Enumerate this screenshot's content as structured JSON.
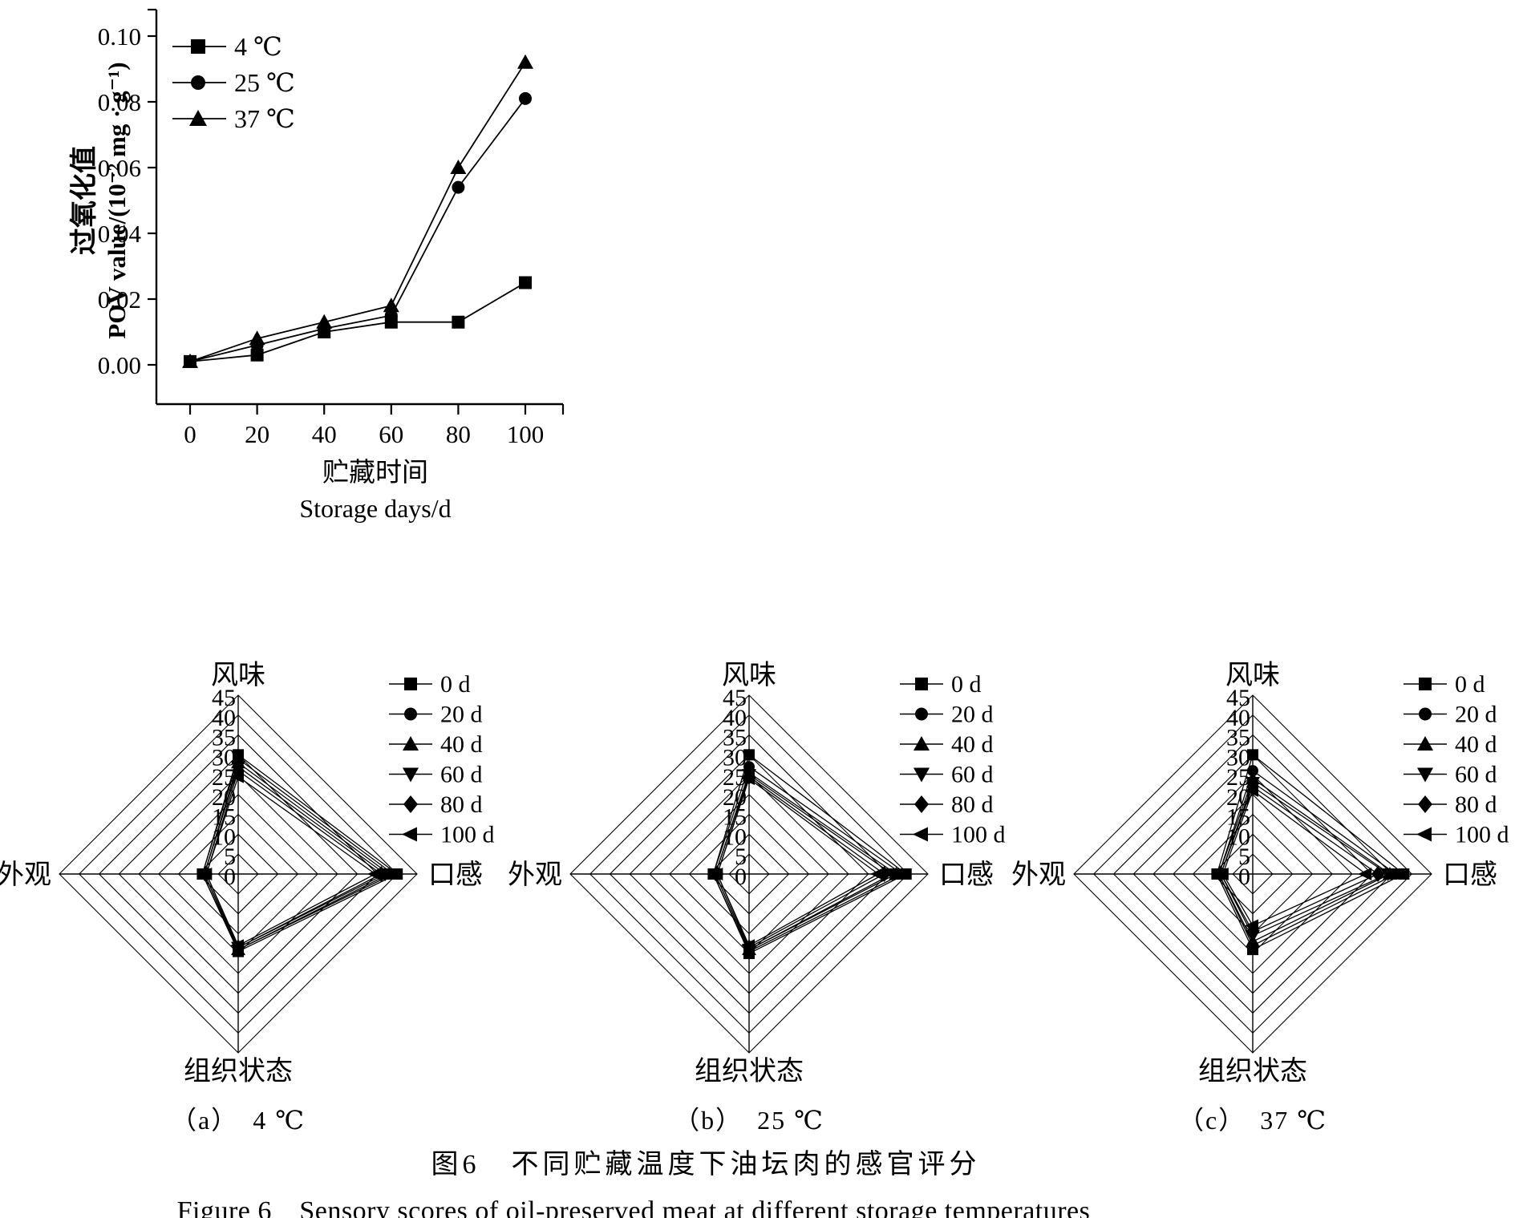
{
  "figure": {
    "caption_cn": "图6　不同贮藏温度下油坛肉的感官评分",
    "caption_en": "Figure 6　Sensory scores of oil-preserved meat at different storage temperatures",
    "ink_color": "#000000",
    "background_color": "#ffffff"
  },
  "chart_data": [
    {
      "id": "pov_line",
      "type": "line",
      "title": "",
      "ylabel_cn": "过氧化值",
      "ylabel_en": "POV value/(10⁻² mg · g⁻¹)",
      "xlabel_cn": "贮藏时间",
      "xlabel_en": "Storage days/d",
      "x": [
        0,
        20,
        40,
        60,
        80,
        100
      ],
      "xticks": [
        0,
        20,
        40,
        60,
        80,
        100
      ],
      "yticks": [
        0.0,
        0.02,
        0.04,
        0.06,
        0.08,
        0.1
      ],
      "xlim": [
        -10,
        112
      ],
      "ylim": [
        -0.012,
        0.108
      ],
      "grid": false,
      "legend_position": "top-left-inside",
      "series": [
        {
          "name": "4 ℃",
          "marker": "square",
          "values": [
            0.001,
            0.003,
            0.01,
            0.013,
            0.013,
            0.025
          ]
        },
        {
          "name": "25 ℃",
          "marker": "circle",
          "values": [
            0.001,
            0.006,
            0.011,
            0.015,
            0.054,
            0.081
          ]
        },
        {
          "name": "37 ℃",
          "marker": "triangle-up",
          "values": [
            0.001,
            0.008,
            0.013,
            0.018,
            0.06,
            0.092
          ]
        }
      ]
    },
    {
      "id": "radar_4c",
      "type": "radar",
      "subtitle": "（a）　4 ℃",
      "axes": [
        "风味",
        "口感",
        "组织状态",
        "外观"
      ],
      "rmax": 45,
      "ring_step": 5,
      "tick_labels": [
        0,
        5,
        10,
        15,
        20,
        25,
        30,
        35,
        40,
        45
      ],
      "legend_position": "top-right",
      "series": [
        {
          "name": "0 d",
          "marker": "square",
          "values": [
            30.0,
            40.0,
            19.5,
            9.0
          ]
        },
        {
          "name": "20 d",
          "marker": "circle",
          "values": [
            29.0,
            39.0,
            19.0,
            9.0
          ]
        },
        {
          "name": "40 d",
          "marker": "triangle-up",
          "values": [
            28.0,
            38.0,
            19.0,
            8.5
          ]
        },
        {
          "name": "60 d",
          "marker": "triangle-down",
          "values": [
            27.0,
            37.0,
            18.5,
            8.5
          ]
        },
        {
          "name": "80 d",
          "marker": "diamond",
          "values": [
            26.0,
            36.0,
            18.5,
            8.0
          ]
        },
        {
          "name": "100 d",
          "marker": "triangle-left",
          "values": [
            24.5,
            34.5,
            18.0,
            8.0
          ]
        }
      ]
    },
    {
      "id": "radar_25c",
      "type": "radar",
      "subtitle": "（b）　25 ℃",
      "axes": [
        "风味",
        "口感",
        "组织状态",
        "外观"
      ],
      "rmax": 45,
      "ring_step": 5,
      "tick_labels": [
        0,
        5,
        10,
        15,
        20,
        25,
        30,
        35,
        40,
        45
      ],
      "legend_position": "top-right",
      "series": [
        {
          "name": "0 d",
          "marker": "square",
          "values": [
            30.0,
            39.5,
            20.0,
            9.0
          ]
        },
        {
          "name": "20 d",
          "marker": "circle",
          "values": [
            27.0,
            38.5,
            19.5,
            9.0
          ]
        },
        {
          "name": "40 d",
          "marker": "triangle-up",
          "values": [
            25.5,
            37.0,
            19.0,
            8.5
          ]
        },
        {
          "name": "60 d",
          "marker": "triangle-down",
          "values": [
            25.0,
            36.0,
            19.0,
            8.5
          ]
        },
        {
          "name": "80 d",
          "marker": "diamond",
          "values": [
            24.5,
            34.0,
            18.5,
            8.0
          ]
        },
        {
          "name": "100 d",
          "marker": "triangle-left",
          "values": [
            24.0,
            32.5,
            18.0,
            8.0
          ]
        }
      ]
    },
    {
      "id": "radar_37c",
      "type": "radar",
      "subtitle": "（c）　37 ℃",
      "axes": [
        "风味",
        "口感",
        "组织状态",
        "外观"
      ],
      "rmax": 45,
      "ring_step": 5,
      "tick_labels": [
        0,
        5,
        10,
        15,
        20,
        25,
        30,
        35,
        40,
        45
      ],
      "legend_position": "top-right",
      "series": [
        {
          "name": "0 d",
          "marker": "square",
          "values": [
            30.0,
            38.0,
            19.0,
            9.0
          ]
        },
        {
          "name": "20 d",
          "marker": "circle",
          "values": [
            26.0,
            36.0,
            18.0,
            8.5
          ]
        },
        {
          "name": "40 d",
          "marker": "triangle-up",
          "values": [
            24.0,
            34.5,
            17.0,
            8.5
          ]
        },
        {
          "name": "60 d",
          "marker": "triangle-down",
          "values": [
            23.0,
            34.0,
            15.5,
            8.0
          ]
        },
        {
          "name": "80 d",
          "marker": "diamond",
          "values": [
            22.0,
            31.5,
            14.5,
            8.0
          ]
        },
        {
          "name": "100 d",
          "marker": "triangle-left",
          "values": [
            21.0,
            28.5,
            13.0,
            7.5
          ]
        }
      ]
    }
  ]
}
